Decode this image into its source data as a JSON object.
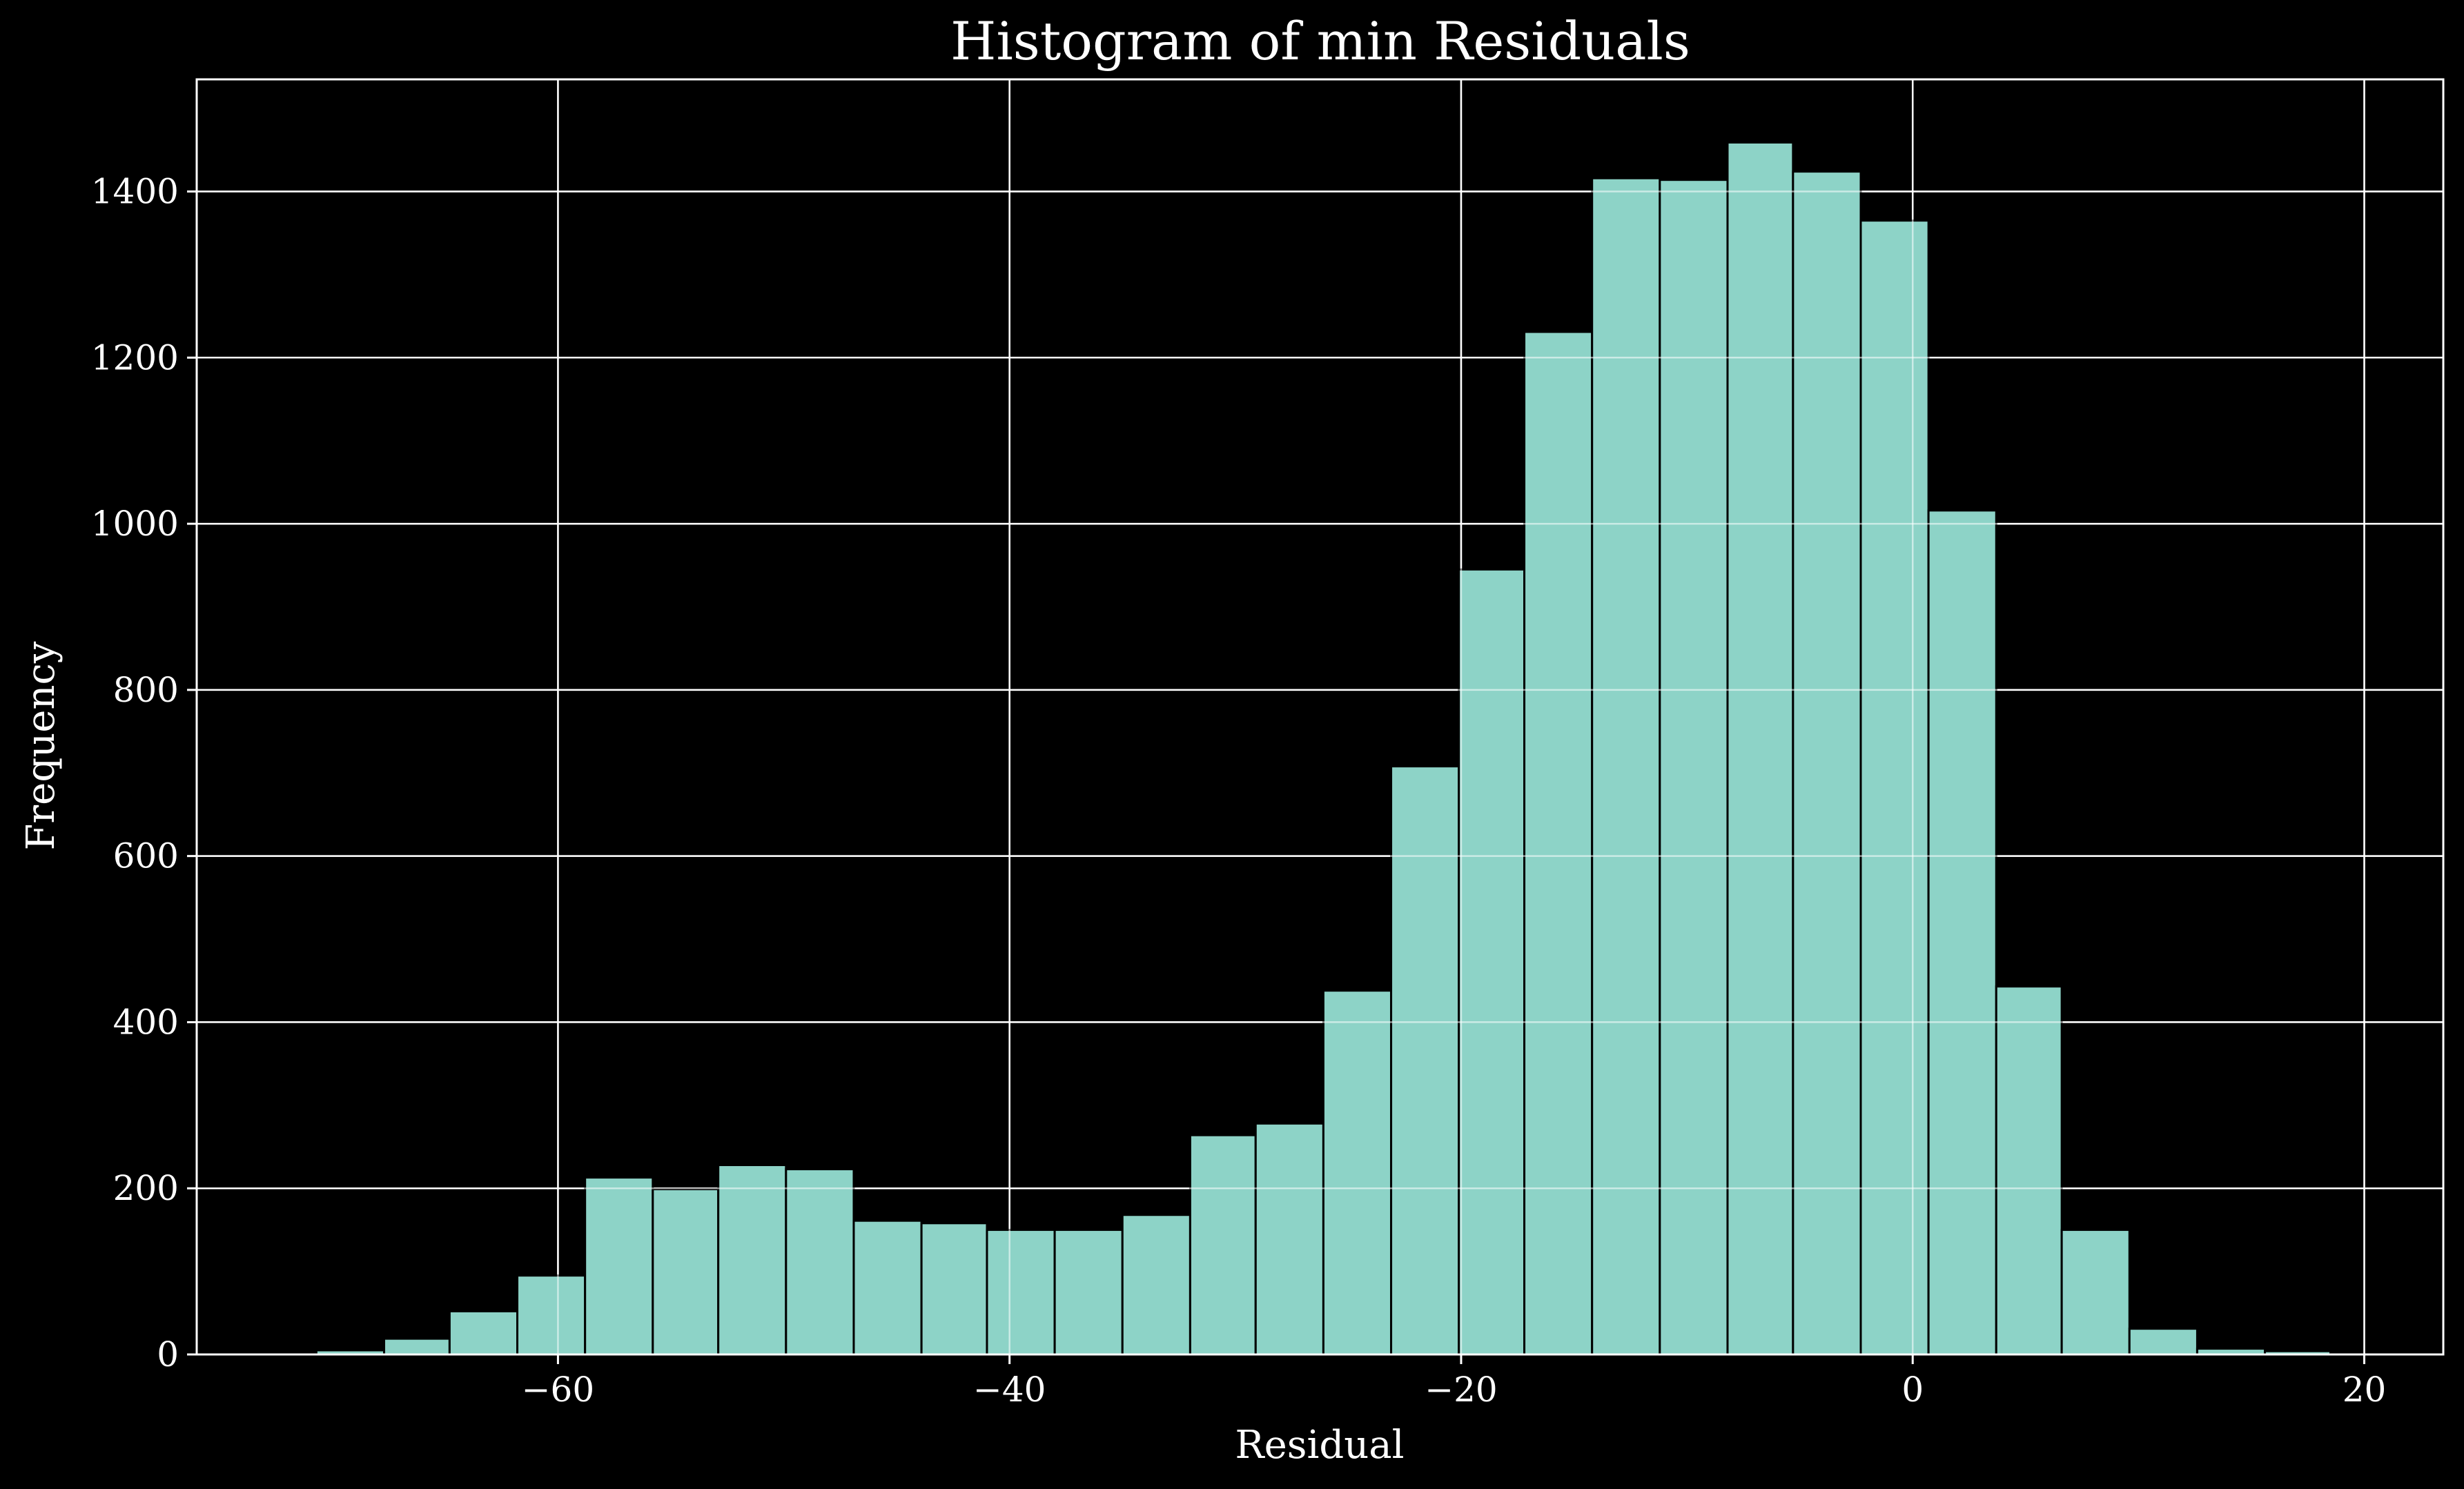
{
  "chart_data": {
    "type": "bar",
    "title": "Histogram of min Residuals",
    "xlabel": "Residual",
    "ylabel": "Frequency",
    "xlim": [
      -76,
      23.5
    ],
    "ylim": [
      0,
      1535
    ],
    "xticks": [
      -60,
      -40,
      -20,
      0,
      20
    ],
    "xtick_labels": [
      "−60",
      "−40",
      "−20",
      "0",
      "20"
    ],
    "yticks": [
      0,
      200,
      400,
      600,
      800,
      1000,
      1200,
      1400
    ],
    "ytick_labels": [
      "0",
      "200",
      "400",
      "600",
      "800",
      "1000",
      "1200",
      "1400"
    ],
    "grid": true,
    "bar_color": "#8dd3c7",
    "bins": [
      {
        "x0": -70.7,
        "x1": -67.7,
        "value": 5
      },
      {
        "x0": -67.7,
        "x1": -64.8,
        "value": 19
      },
      {
        "x0": -64.8,
        "x1": -61.8,
        "value": 52
      },
      {
        "x0": -61.8,
        "x1": -58.8,
        "value": 95
      },
      {
        "x0": -58.8,
        "x1": -55.8,
        "value": 213
      },
      {
        "x0": -55.8,
        "x1": -52.9,
        "value": 199
      },
      {
        "x0": -52.9,
        "x1": -49.9,
        "value": 228
      },
      {
        "x0": -49.9,
        "x1": -46.9,
        "value": 223
      },
      {
        "x0": -46.9,
        "x1": -43.9,
        "value": 161
      },
      {
        "x0": -43.9,
        "x1": -41.0,
        "value": 158
      },
      {
        "x0": -41.0,
        "x1": -38.0,
        "value": 150
      },
      {
        "x0": -38.0,
        "x1": -35.0,
        "value": 150
      },
      {
        "x0": -35.0,
        "x1": -32.0,
        "value": 168
      },
      {
        "x0": -32.0,
        "x1": -29.1,
        "value": 264
      },
      {
        "x0": -29.1,
        "x1": -26.1,
        "value": 278
      },
      {
        "x0": -26.1,
        "x1": -23.1,
        "value": 438
      },
      {
        "x0": -23.1,
        "x1": -20.1,
        "value": 708
      },
      {
        "x0": -20.1,
        "x1": -17.2,
        "value": 945
      },
      {
        "x0": -17.2,
        "x1": -14.2,
        "value": 1231
      },
      {
        "x0": -14.2,
        "x1": -11.2,
        "value": 1416
      },
      {
        "x0": -11.2,
        "x1": -8.2,
        "value": 1414
      },
      {
        "x0": -8.2,
        "x1": -5.3,
        "value": 1459
      },
      {
        "x0": -5.3,
        "x1": -2.3,
        "value": 1424
      },
      {
        "x0": -2.3,
        "x1": 0.7,
        "value": 1365
      },
      {
        "x0": 0.7,
        "x1": 3.7,
        "value": 1016
      },
      {
        "x0": 3.7,
        "x1": 6.6,
        "value": 443
      },
      {
        "x0": 6.6,
        "x1": 9.6,
        "value": 150
      },
      {
        "x0": 9.6,
        "x1": 12.6,
        "value": 31
      },
      {
        "x0": 12.6,
        "x1": 15.6,
        "value": 7
      },
      {
        "x0": 15.6,
        "x1": 18.5,
        "value": 4
      }
    ]
  }
}
